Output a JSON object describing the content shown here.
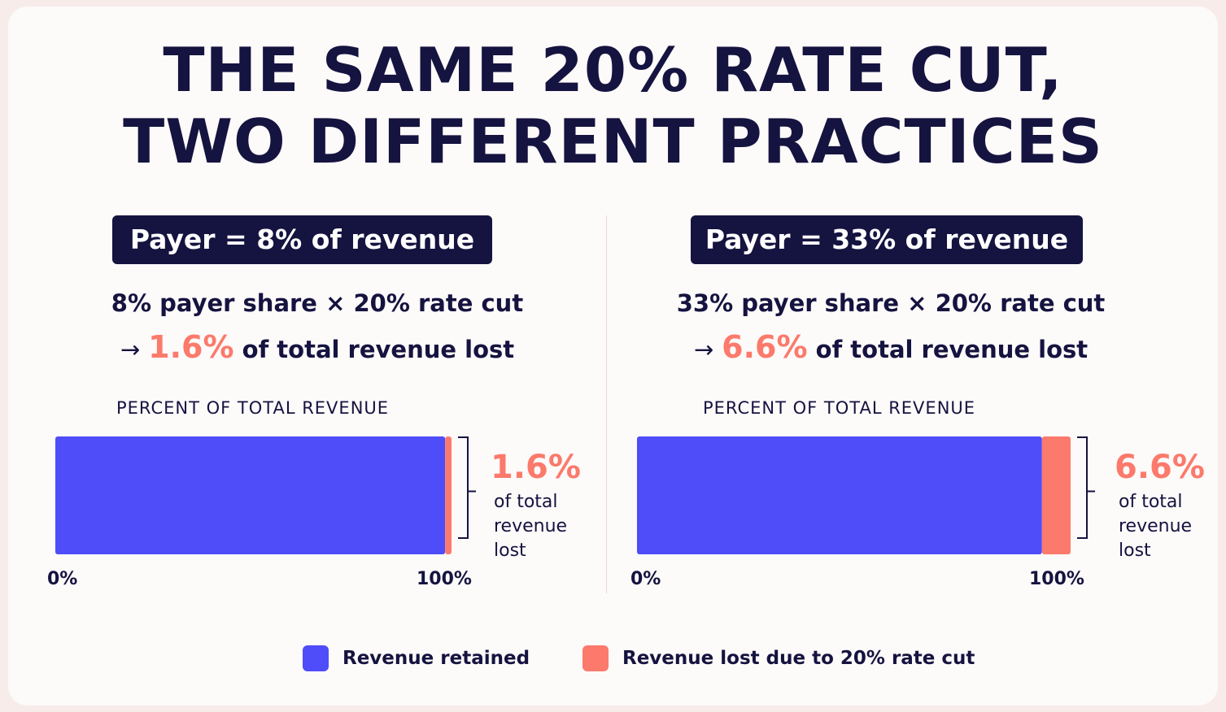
{
  "title": {
    "line1": "THE SAME 20% RATE CUT,",
    "line2": "TWO DIFFERENT PRACTICES"
  },
  "colors": {
    "retained": "#4f4cf9",
    "lost": "#fb7a6b",
    "navy": "#15133f"
  },
  "panels": [
    {
      "pill": "Payer = 8% of revenue",
      "formula": "8% payer share × 20% rate cut",
      "arrow": "→",
      "result_value": "1.6%",
      "result_rest": "of total revenue lost",
      "caption": "PERCENT OF TOTAL REVENUE",
      "tick_start": "0%",
      "tick_end": "100%",
      "callout_value": "1.6%",
      "callout_lines": [
        "of total",
        "revenue",
        "lost"
      ]
    },
    {
      "pill": "Payer = 33% of revenue",
      "formula": "33% payer share × 20% rate cut",
      "arrow": "→",
      "result_value": "6.6%",
      "result_rest": "of total revenue lost",
      "caption": "PERCENT OF TOTAL REVENUE",
      "tick_start": "0%",
      "tick_end": "100%",
      "callout_value": "6.6%",
      "callout_lines": [
        "of total",
        "revenue",
        "lost"
      ]
    }
  ],
  "legend": {
    "retained": "Revenue retained",
    "lost": "Revenue lost due to 20% rate cut"
  },
  "chart_data": [
    {
      "type": "bar",
      "orientation": "horizontal-stacked",
      "xlim": [
        0,
        100
      ],
      "series": [
        {
          "name": "Revenue retained",
          "values": [
            98.4
          ]
        },
        {
          "name": "Revenue lost due to 20% rate cut",
          "values": [
            1.6
          ]
        }
      ]
    },
    {
      "type": "bar",
      "orientation": "horizontal-stacked",
      "xlim": [
        0,
        100
      ],
      "series": [
        {
          "name": "Revenue retained",
          "values": [
            93.4
          ]
        },
        {
          "name": "Revenue lost due to 20% rate cut",
          "values": [
            6.6
          ]
        }
      ]
    }
  ]
}
